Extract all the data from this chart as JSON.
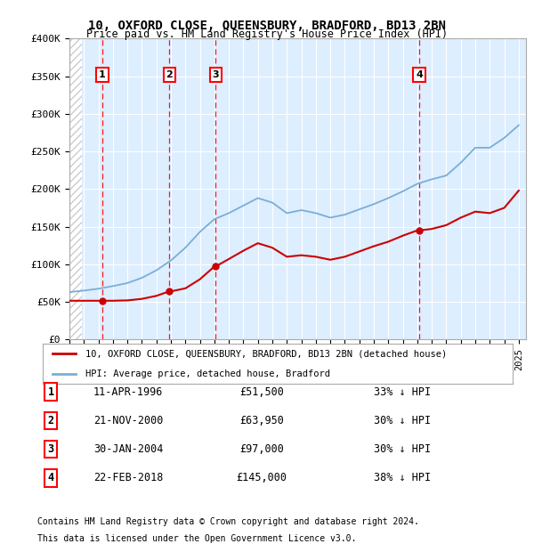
{
  "title": "10, OXFORD CLOSE, QUEENSBURY, BRADFORD, BD13 2BN",
  "subtitle": "Price paid vs. HM Land Registry's House Price Index (HPI)",
  "ylim": [
    0,
    400000
  ],
  "xlim_start": 1994.0,
  "xlim_end": 2025.5,
  "yticks": [
    0,
    50000,
    100000,
    150000,
    200000,
    250000,
    300000,
    350000,
    400000
  ],
  "ytick_labels": [
    "£0",
    "£50K",
    "£100K",
    "£150K",
    "£200K",
    "£250K",
    "£300K",
    "£350K",
    "£400K"
  ],
  "sales": [
    {
      "num": 1,
      "year": 1996.27,
      "price": 51500,
      "label": "11-APR-1996",
      "amount": "£51,500",
      "pct": "33% ↓ HPI"
    },
    {
      "num": 2,
      "year": 2000.89,
      "price": 63950,
      "label": "21-NOV-2000",
      "amount": "£63,950",
      "pct": "30% ↓ HPI"
    },
    {
      "num": 3,
      "year": 2004.08,
      "price": 97000,
      "label": "30-JAN-2004",
      "amount": "£97,000",
      "pct": "30% ↓ HPI"
    },
    {
      "num": 4,
      "year": 2018.14,
      "price": 145000,
      "label": "22-FEB-2018",
      "amount": "£145,000",
      "pct": "38% ↓ HPI"
    }
  ],
  "hpi_years": [
    1994,
    1995,
    1996,
    1997,
    1998,
    1999,
    2000,
    2001,
    2002,
    2003,
    2004,
    2005,
    2006,
    2007,
    2008,
    2009,
    2010,
    2011,
    2012,
    2013,
    2014,
    2015,
    2016,
    2017,
    2018,
    2019,
    2020,
    2021,
    2022,
    2023,
    2024,
    2025
  ],
  "hpi_values": [
    63000,
    65000,
    67500,
    71000,
    75000,
    82000,
    92000,
    105000,
    122000,
    143000,
    160000,
    168000,
    178000,
    188000,
    182000,
    168000,
    172000,
    168000,
    162000,
    166000,
    173000,
    180000,
    188000,
    197000,
    207000,
    213000,
    218000,
    235000,
    255000,
    255000,
    268000,
    285000
  ],
  "red_line_years": [
    1994,
    1995,
    1996,
    1996.27,
    1997,
    1998,
    1999,
    2000,
    2000.89,
    2001,
    2002,
    2003,
    2004,
    2004.08,
    2005,
    2006,
    2007,
    2008,
    2009,
    2010,
    2011,
    2012,
    2013,
    2014,
    2015,
    2016,
    2017,
    2018,
    2018.14,
    2019,
    2020,
    2021,
    2022,
    2023,
    2024,
    2025
  ],
  "red_line_values": [
    51500,
    51500,
    51500,
    51500,
    51500,
    52000,
    54000,
    58000,
    63950,
    63950,
    68000,
    80000,
    97000,
    97000,
    107000,
    118000,
    128000,
    122000,
    110000,
    112000,
    110000,
    106000,
    110000,
    117000,
    124000,
    130000,
    138000,
    145000,
    145000,
    147000,
    152000,
    162000,
    170000,
    168000,
    175000,
    198000
  ],
  "bg_color": "#ddeeff",
  "hatch_color": "#bbbbbb",
  "red_color": "#cc0000",
  "blue_color": "#7aaed6",
  "legend_label_red": "10, OXFORD CLOSE, QUEENSBURY, BRADFORD, BD13 2BN (detached house)",
  "legend_label_blue": "HPI: Average price, detached house, Bradford",
  "footer1": "Contains HM Land Registry data © Crown copyright and database right 2024.",
  "footer2": "This data is licensed under the Open Government Licence v3.0."
}
